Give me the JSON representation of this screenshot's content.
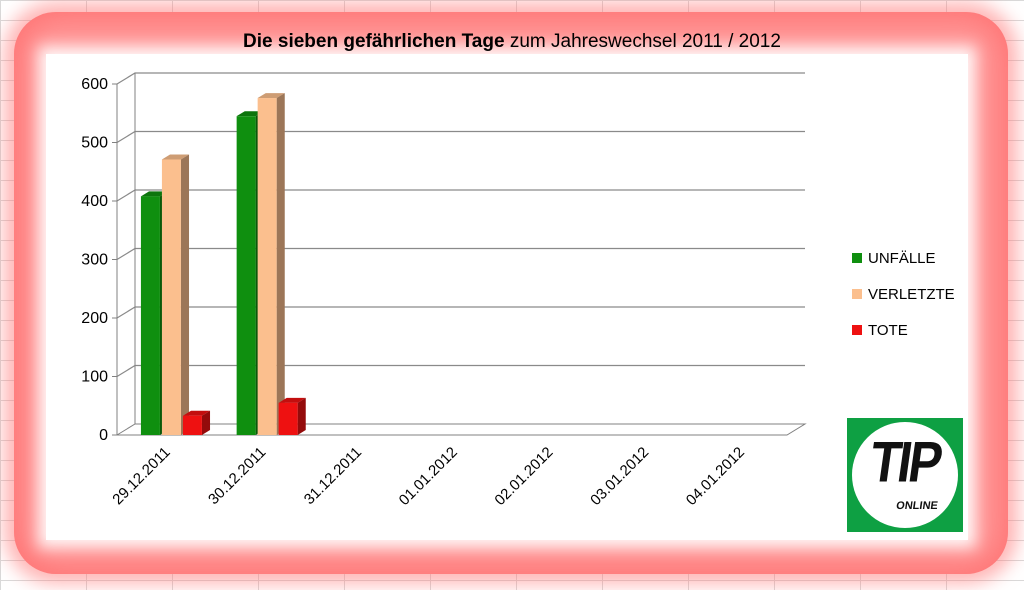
{
  "chart_data": {
    "type": "bar",
    "title_bold": "Die sieben gefährlichen Tage",
    "title_rest": " zum Jahreswechsel 2011 / 2012",
    "categories": [
      "29.12.2011",
      "30.12.2011",
      "31.12.2011",
      "01.01.2012",
      "02.01.2012",
      "03.01.2012",
      "04.01.2012"
    ],
    "series": [
      {
        "name": "UNFÄLLE",
        "color": "#0f8f0f",
        "values": [
          408,
          545,
          null,
          null,
          null,
          null,
          null
        ]
      },
      {
        "name": "VERLETZTE",
        "color": "#fbbf8e",
        "values": [
          471,
          576,
          null,
          null,
          null,
          null,
          null
        ]
      },
      {
        "name": "TOTE",
        "color": "#ee1111",
        "values": [
          33,
          55,
          null,
          null,
          null,
          null,
          null
        ]
      }
    ],
    "yticks": [
      "0",
      "100",
      "200",
      "300",
      "400",
      "500",
      "600"
    ],
    "ylim": [
      0,
      600
    ],
    "grid": true,
    "legend_position": "right",
    "style": "3d-clustered-column"
  },
  "logo": {
    "main": "TIP",
    "sub": "ONLINE",
    "color": "#0ea043"
  }
}
